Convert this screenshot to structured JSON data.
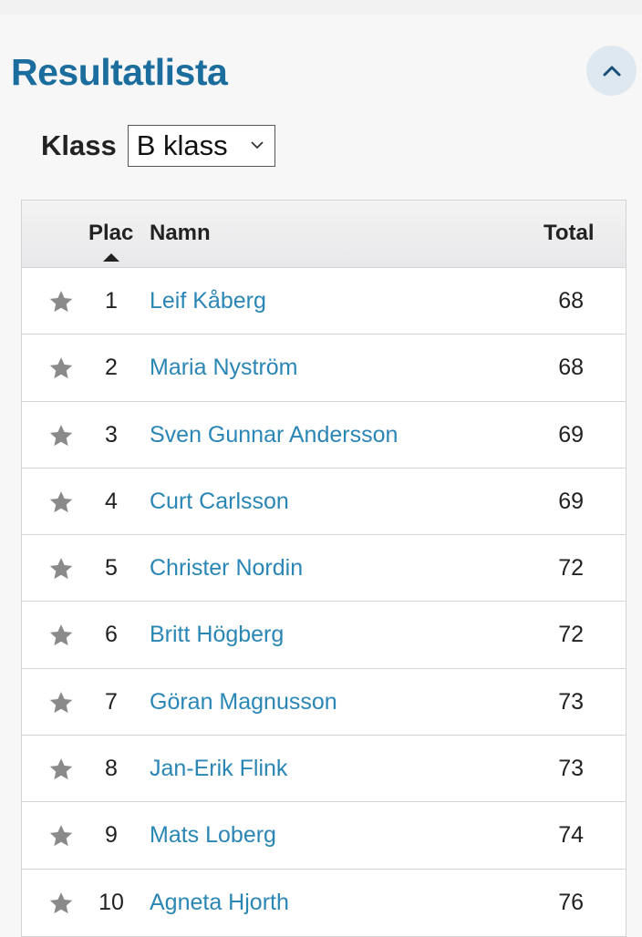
{
  "header": {
    "title": "Resultatlista"
  },
  "class_filter": {
    "label": "Klass",
    "selected": "B klass"
  },
  "table": {
    "columns": {
      "plac": "Plac",
      "namn": "Namn",
      "total": "Total"
    },
    "rows": [
      {
        "plac": "1",
        "name": "Leif Kåberg",
        "total": "68"
      },
      {
        "plac": "2",
        "name": "Maria Nyström",
        "total": "68"
      },
      {
        "plac": "3",
        "name": "Sven Gunnar Andersson",
        "total": "69"
      },
      {
        "plac": "4",
        "name": "Curt Carlsson",
        "total": "69"
      },
      {
        "plac": "5",
        "name": "Christer Nordin",
        "total": "72"
      },
      {
        "plac": "6",
        "name": "Britt Högberg",
        "total": "72"
      },
      {
        "plac": "7",
        "name": "Göran Magnusson",
        "total": "73"
      },
      {
        "plac": "8",
        "name": "Jan-Erik Flink",
        "total": "73"
      },
      {
        "plac": "9",
        "name": "Mats Loberg",
        "total": "74"
      },
      {
        "plac": "10",
        "name": "Agneta Hjorth",
        "total": "76"
      }
    ]
  },
  "colors": {
    "title": "#1a6d9c",
    "link": "#2a86b5",
    "star": "#8a8a8a"
  }
}
